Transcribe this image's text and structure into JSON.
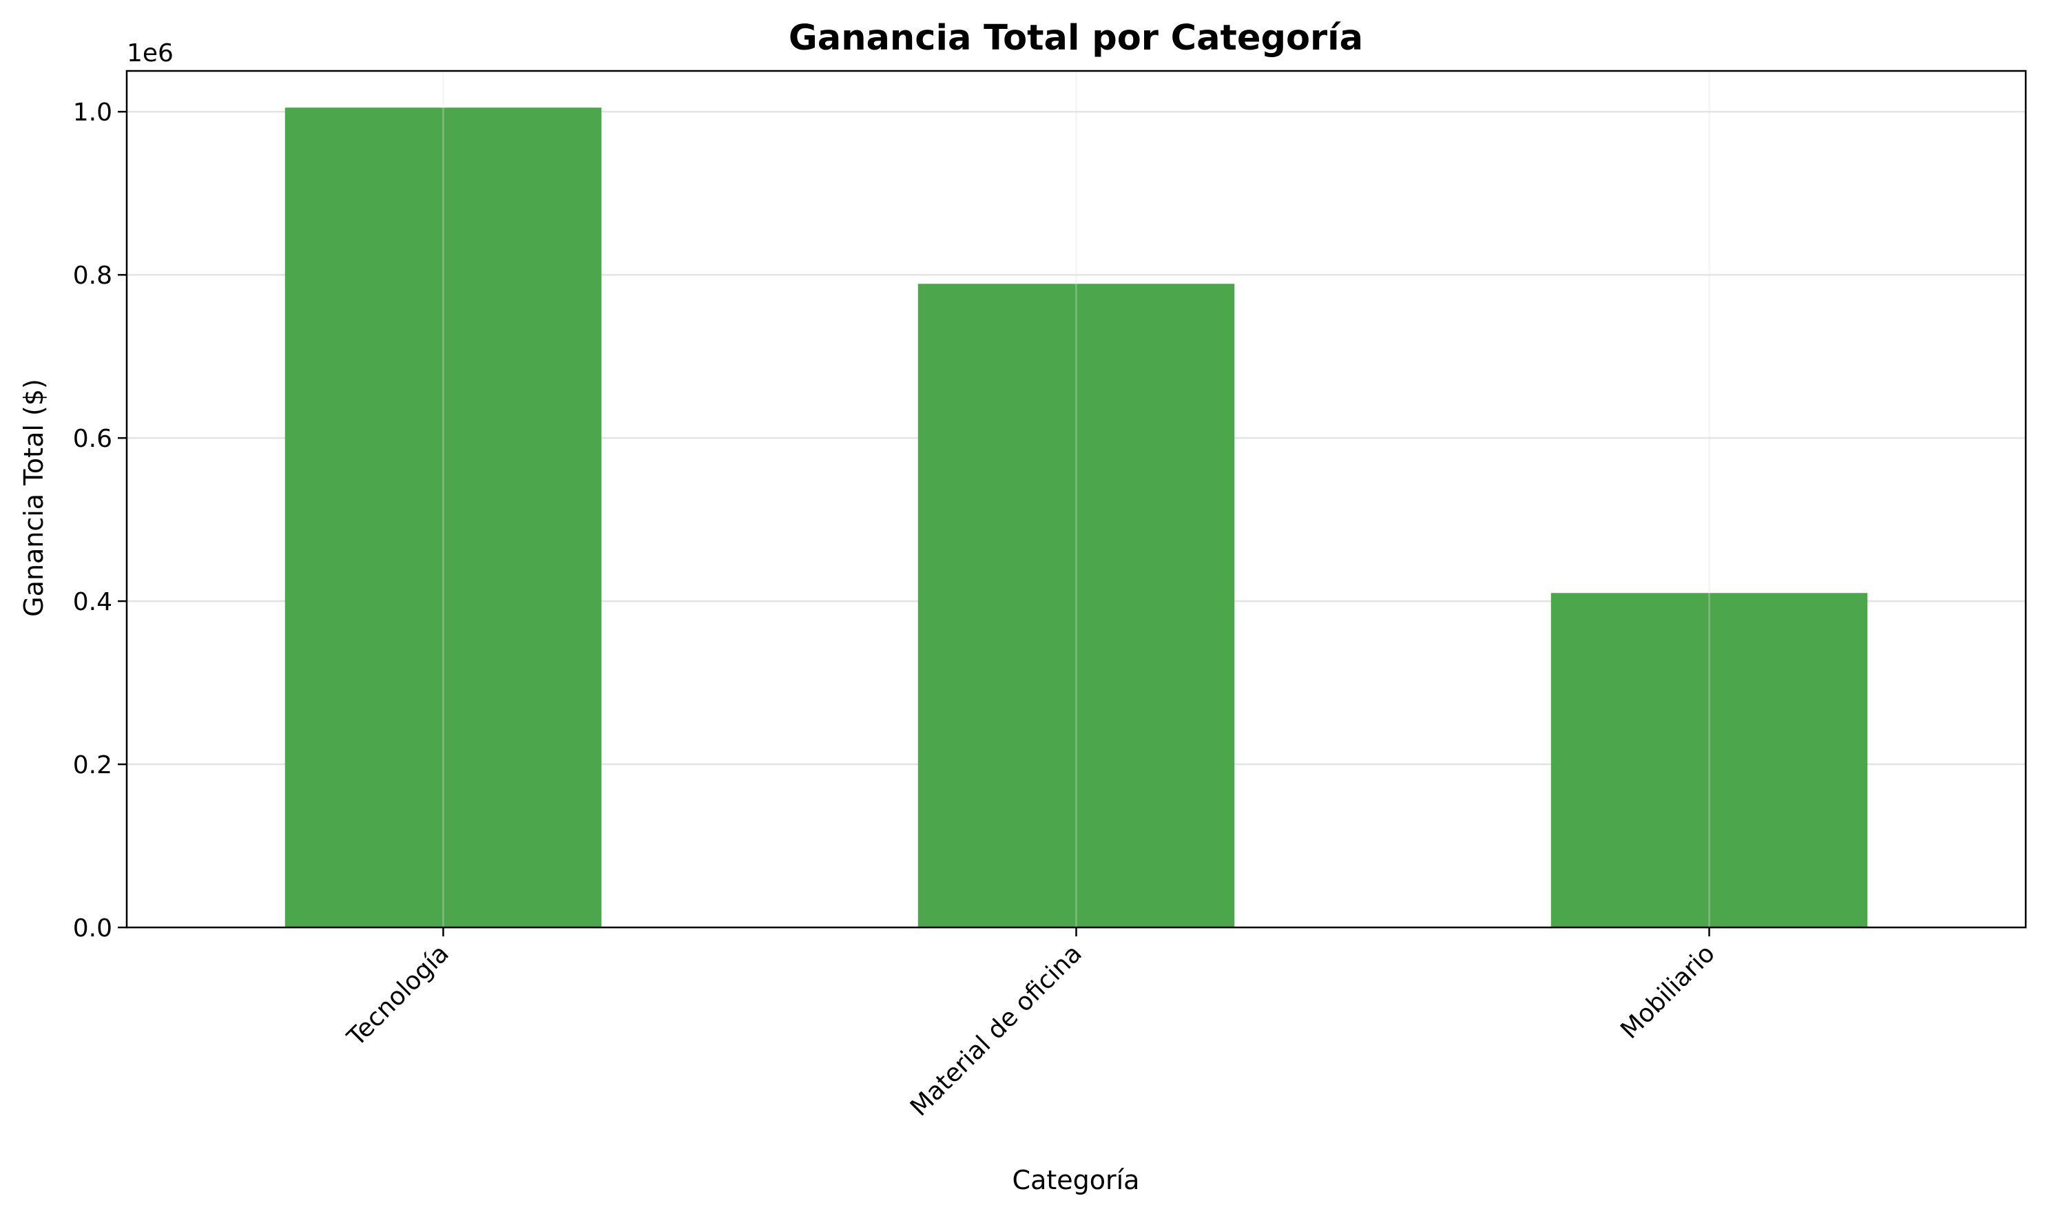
{
  "chart_data": {
    "type": "bar",
    "title": "Ganancia Total por Categoría",
    "xlabel": "Categoría",
    "ylabel": "Ganancia Total ($)",
    "categories": [
      "Tecnología",
      "Material de oficina",
      "Mobiliario"
    ],
    "values": [
      1005000,
      789000,
      410000
    ],
    "ylim": [
      0,
      1050000
    ],
    "yticks": [
      0,
      200000,
      400000,
      600000,
      800000,
      1000000
    ],
    "ytick_labels": [
      "0.0",
      "0.2",
      "0.4",
      "0.6",
      "0.8",
      "1.0"
    ],
    "y_offset_label": "1e6",
    "grid": true,
    "legend": "none",
    "bar_color": "#4ca64c",
    "bar_alpha": 1
  }
}
